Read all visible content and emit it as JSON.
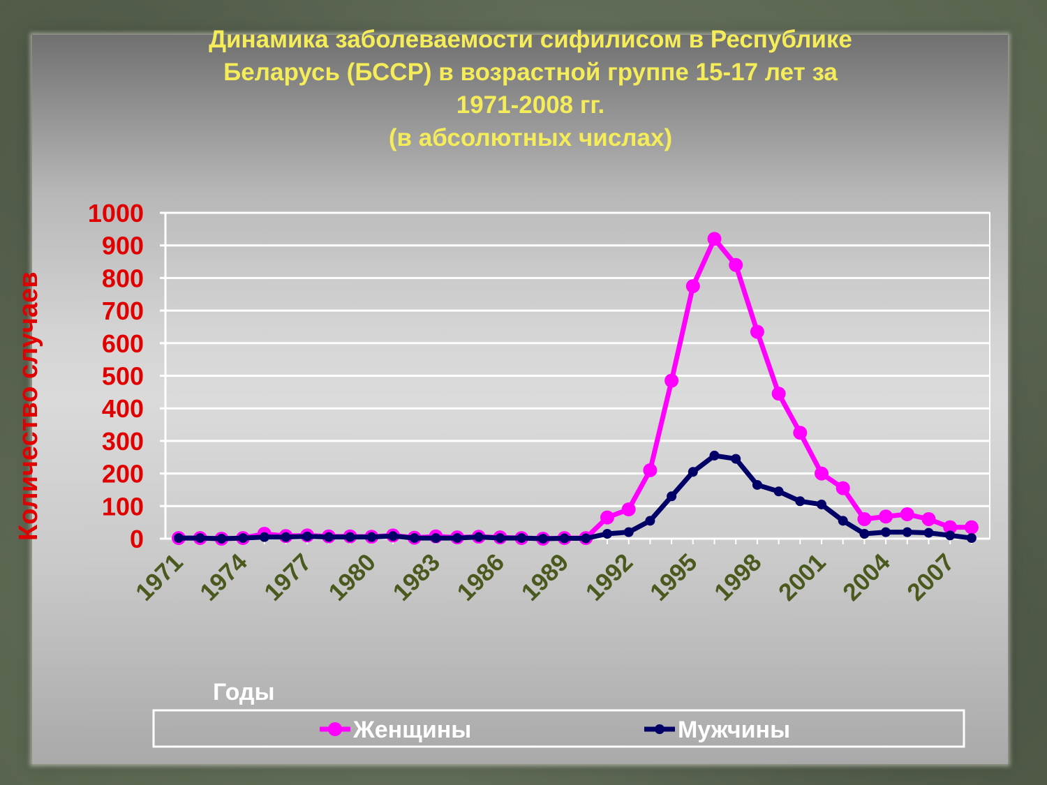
{
  "chart_data": {
    "type": "line",
    "title_lines": [
      "Динамика заболеваемости сифилисом в Республике",
      "Беларусь (БССР) в возрастной группе 15-17 лет за",
      "1971-2008 гг.",
      "(в абсолютных числах)"
    ],
    "xlabel": "Годы",
    "ylabel": "Количество случаев",
    "ylim": [
      0,
      1000
    ],
    "ytick_labels": [
      "0",
      "100",
      "200",
      "300",
      "400",
      "500",
      "600",
      "700",
      "800",
      "900",
      "1000"
    ],
    "xtick_labels": [
      "1971",
      "1974",
      "1977",
      "1980",
      "1983",
      "1986",
      "1989",
      "1992",
      "1995",
      "1998",
      "2001",
      "2004",
      "2007"
    ],
    "x": [
      1971,
      1972,
      1973,
      1974,
      1975,
      1976,
      1977,
      1978,
      1979,
      1980,
      1981,
      1982,
      1983,
      1984,
      1985,
      1986,
      1987,
      1988,
      1989,
      1990,
      1991,
      1992,
      1993,
      1994,
      1995,
      1996,
      1997,
      1998,
      1999,
      2000,
      2001,
      2002,
      2003,
      2004,
      2005,
      2006,
      2007,
      2008
    ],
    "series": [
      {
        "name": "Женщины",
        "color": "#ff00ff",
        "values": [
          2,
          2,
          0,
          2,
          15,
          8,
          10,
          7,
          7,
          6,
          10,
          3,
          7,
          4,
          6,
          4,
          2,
          0,
          2,
          2,
          65,
          90,
          210,
          485,
          775,
          920,
          840,
          635,
          445,
          325,
          200,
          155,
          60,
          68,
          75,
          60,
          35,
          35
        ]
      },
      {
        "name": "Мужчины",
        "color": "#000066",
        "values": [
          2,
          2,
          0,
          2,
          5,
          5,
          7,
          5,
          5,
          5,
          8,
          2,
          2,
          2,
          5,
          2,
          2,
          0,
          1,
          1,
          15,
          20,
          55,
          130,
          205,
          255,
          245,
          165,
          145,
          115,
          105,
          55,
          15,
          20,
          20,
          18,
          10,
          2
        ]
      }
    ],
    "grid": true,
    "legend_position": "bottom"
  }
}
